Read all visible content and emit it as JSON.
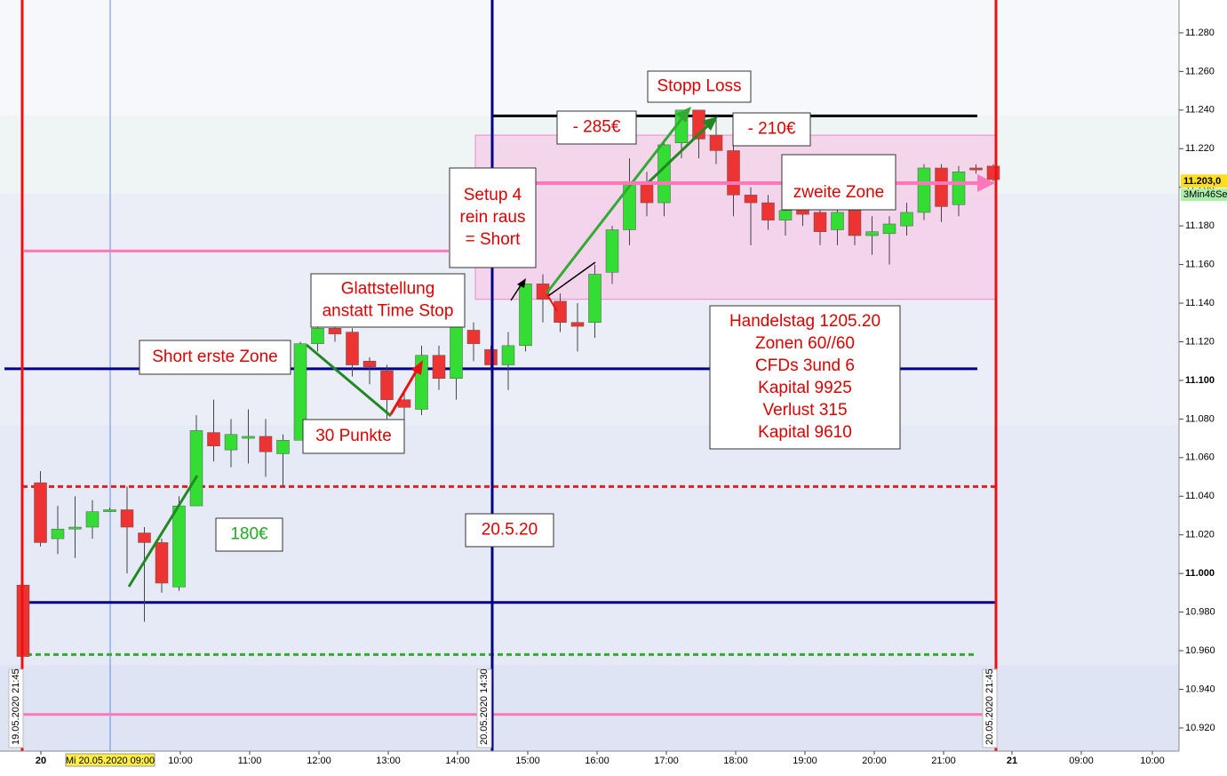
{
  "chart_data": {
    "type": "candlestick",
    "up_color": "#33dd33",
    "down_color": "#ee3333",
    "open": [
      10.994,
      11.047,
      11.018,
      11.023,
      11.024,
      11.032,
      11.033,
      11.021,
      11.016,
      10.993,
      11.035,
      11.073,
      11.064,
      11.07,
      11.071,
      11.062,
      11.069,
      11.119,
      11.127,
      11.125,
      11.11,
      11.105,
      11.09,
      11.085,
      11.113,
      11.101,
      11.126,
      11.116,
      11.108,
      11.118,
      11.15,
      11.141,
      11.13,
      11.13,
      11.156,
      11.178,
      11.203,
      11.192,
      11.223,
      11.24,
      11.227,
      11.219,
      11.196,
      11.192,
      11.183,
      11.189,
      11.187,
      11.178,
      11.188,
      11.175,
      11.176,
      11.18,
      11.187,
      11.21,
      11.191,
      11.21,
      11.211
    ],
    "high": [
      10.998,
      11.053,
      11.035,
      11.04,
      11.038,
      11.034,
      11.045,
      11.024,
      11.018,
      11.04,
      11.082,
      11.09,
      11.08,
      11.085,
      11.08,
      11.072,
      11.12,
      11.14,
      11.132,
      11.127,
      11.112,
      11.108,
      11.095,
      11.118,
      11.118,
      11.138,
      11.13,
      11.118,
      11.125,
      11.15,
      11.155,
      11.145,
      11.14,
      11.16,
      11.18,
      11.215,
      11.208,
      11.225,
      11.24,
      11.24,
      11.235,
      11.222,
      11.2,
      11.196,
      11.195,
      11.195,
      11.193,
      11.195,
      11.195,
      11.185,
      11.185,
      11.192,
      11.212,
      11.212,
      11.211,
      11.212,
      11.212
    ],
    "low": [
      10.956,
      11.014,
      11.01,
      11.008,
      11.018,
      11.032,
      11.0,
      10.975,
      10.99,
      10.991,
      11.035,
      11.058,
      11.055,
      11.057,
      11.05,
      11.045,
      11.069,
      11.115,
      11.12,
      11.102,
      11.098,
      11.08,
      11.078,
      11.082,
      11.095,
      11.09,
      11.11,
      11.105,
      11.095,
      11.115,
      11.13,
      11.125,
      11.115,
      11.122,
      11.15,
      11.17,
      11.185,
      11.185,
      11.215,
      11.215,
      11.212,
      11.185,
      11.17,
      11.178,
      11.175,
      11.18,
      11.17,
      11.17,
      11.17,
      11.165,
      11.16,
      11.175,
      11.183,
      11.182,
      11.185,
      11.207,
      11.203
    ],
    "close": [
      10.957,
      11.016,
      11.023,
      11.024,
      11.032,
      11.033,
      11.024,
      11.016,
      10.995,
      11.035,
      11.074,
      11.066,
      11.072,
      11.071,
      11.063,
      11.069,
      11.119,
      11.127,
      11.124,
      11.108,
      11.107,
      11.09,
      11.086,
      11.113,
      11.101,
      11.13,
      11.119,
      11.108,
      11.118,
      11.15,
      11.142,
      11.13,
      11.128,
      11.155,
      11.178,
      11.203,
      11.192,
      11.222,
      11.24,
      11.225,
      11.219,
      11.196,
      11.192,
      11.183,
      11.188,
      11.186,
      11.177,
      11.187,
      11.175,
      11.177,
      11.181,
      11.187,
      11.21,
      11.19,
      11.208,
      11.209,
      11.204
    ],
    "ylim": [
      10.908,
      11.297
    ],
    "yticks": [
      {
        "value": 10.92,
        "label": "10.920"
      },
      {
        "value": 10.94,
        "label": "10.940"
      },
      {
        "value": 10.96,
        "label": "10.960"
      },
      {
        "value": 10.98,
        "label": "10.980"
      },
      {
        "value": 11.0,
        "label": "11.000"
      },
      {
        "value": 11.02,
        "label": "11.020"
      },
      {
        "value": 11.04,
        "label": "11.040"
      },
      {
        "value": 11.06,
        "label": "11.060"
      },
      {
        "value": 11.08,
        "label": "11.080"
      },
      {
        "value": 11.1,
        "label": "11.100"
      },
      {
        "value": 11.12,
        "label": "11.120"
      },
      {
        "value": 11.14,
        "label": "11.140"
      },
      {
        "value": 11.16,
        "label": "11.160"
      },
      {
        "value": 11.18,
        "label": "11.180"
      },
      {
        "value": 11.2,
        "label": "11.200"
      },
      {
        "value": 11.22,
        "label": "11.220"
      },
      {
        "value": 11.24,
        "label": "11.240"
      },
      {
        "value": 11.26,
        "label": "11.260"
      },
      {
        "value": 11.28,
        "label": "11.280"
      }
    ],
    "xticks": [
      "20",
      "10:00",
      "11:00",
      "12:00",
      "13:00",
      "14:00",
      "15:00",
      "16:00",
      "17:00",
      "18:00",
      "19:00",
      "20:00",
      "21:00",
      "21",
      "09:00",
      "10:00"
    ],
    "start_label": "Mi 20.05.2020 09:00",
    "date_labels": [
      "19.05.2020 21:45",
      "20.05.2020 14:30",
      "20.05.2020 21:45"
    ],
    "price_label": {
      "value": 11.203,
      "label": "11.203,0"
    },
    "timer_label": "3Min46Se",
    "levels": [
      {
        "value": 11.106,
        "color": "#00008b"
      },
      {
        "value": 10.985,
        "color": "#00008b"
      },
      {
        "value": 11.237,
        "color": "#000000"
      },
      {
        "value": 11.045,
        "color": "#dd2222",
        "dashed": true
      },
      {
        "value": 10.958,
        "color": "#33aa33",
        "dashed": true
      },
      {
        "value": 10.927,
        "color": "#ff77bb"
      },
      {
        "value": 11.167,
        "color": "#ff77bb"
      }
    ],
    "zone": {
      "top": 11.227,
      "bottom": 11.142,
      "color": "#f6cbe8"
    },
    "annotations": [
      {
        "lines": [
          "Stopp Loss"
        ],
        "color": "#dd0000"
      },
      {
        "lines": [
          "- 285€"
        ],
        "color": "#dd0000"
      },
      {
        "lines": [
          "- 210€"
        ],
        "color": "#dd0000"
      },
      {
        "lines": [
          "zweite Zone"
        ],
        "color": "#dd0000"
      },
      {
        "lines": [
          "Setup  4",
          "rein  raus",
          "= Short"
        ],
        "color": "#dd0000"
      },
      {
        "lines": [
          "Glattstellung",
          "anstatt Time Stop"
        ],
        "color": "#dd0000"
      },
      {
        "lines": [
          "Short erste Zone"
        ],
        "color": "#dd0000"
      },
      {
        "lines": [
          "30 Punkte"
        ],
        "color": "#dd0000"
      },
      {
        "lines": [
          "180€"
        ],
        "color": "#22aa22"
      },
      {
        "lines": [
          "20.5.20"
        ],
        "color": "#dd0000"
      },
      {
        "lines": [
          "Handelstag 1205.20",
          "Zonen 60//60",
          "CFDs  3und 6",
          "Kapital     9925",
          "Verlust       315",
          "Kapital       9610"
        ],
        "color": "#dd0000"
      }
    ]
  }
}
